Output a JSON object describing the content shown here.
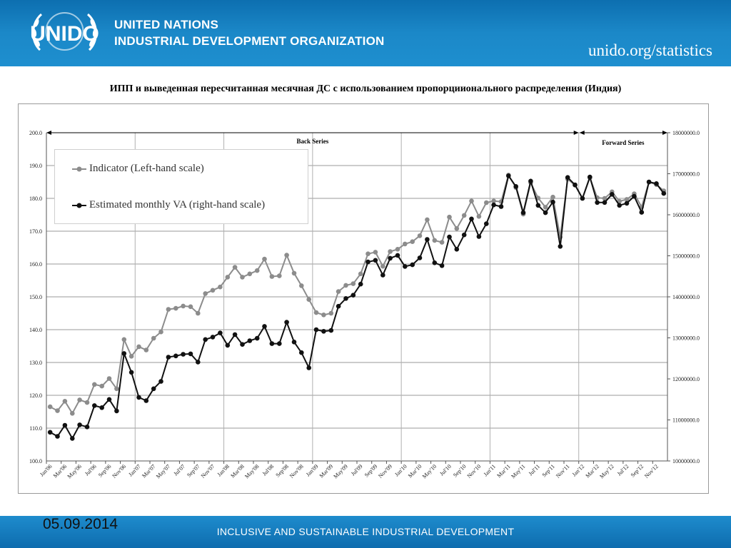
{
  "header": {
    "org_line1": "UNITED NATIONS",
    "org_line2": "INDUSTRIAL DEVELOPMENT ORGANIZATION",
    "logo_text": "UNIDO",
    "site": "unido.org/statistics"
  },
  "footer": {
    "date": "05.09.2014",
    "slogan": "INCLUSIVE AND SUSTAINABLE INDUSTRIAL DEVELOPMENT"
  },
  "colors": {
    "indicator": "#8c8c8c",
    "estimated": "#111111",
    "header": "#1b88c8"
  },
  "chart_data": {
    "type": "line",
    "title": "ИПП и выведенная пересчитанная месячная ДС с использованием пропорциионального распределения (Индия)",
    "annotations": {
      "back": "Back Series",
      "forward": "Forward Series",
      "split_at": "Jan'12"
    },
    "xticks": [
      "Jan'06",
      "Mar'06",
      "May'06",
      "Jul'06",
      "Sep'06",
      "Nov'06",
      "Jan'07",
      "Mar'07",
      "May'07",
      "Jul'07",
      "Sep'07",
      "Nov'07",
      "Jan'08",
      "Mar'08",
      "May'08",
      "Jul'08",
      "Sep'08",
      "Nov'08",
      "Jan'09",
      "Mar'09",
      "May'09",
      "Jul'09",
      "Sep'09",
      "Nov'09",
      "Jan'10",
      "Mar'10",
      "May'10",
      "Jul'10",
      "Sep'10",
      "Nov'10",
      "Jan'11",
      "Mar'11",
      "May'11",
      "Jul'11",
      "Sep'11",
      "Nov'11",
      "Jan'12",
      "Mar'12",
      "May'12",
      "Jul'12",
      "Sep'12",
      "Nov'12"
    ],
    "y_left": {
      "min": 100,
      "max": 200,
      "step": 10,
      "ticks": [
        "100.0",
        "110.0",
        "120.0",
        "130.0",
        "140.0",
        "150.0",
        "160.0",
        "170.0",
        "180.0",
        "190.0",
        "200.0"
      ]
    },
    "y_right": {
      "min": 10000000,
      "max": 18000000,
      "step": 1000000,
      "ticks": [
        "10000000.0",
        "11000000.0",
        "12000000.0",
        "13000000.0",
        "14000000.0",
        "15000000.0",
        "16000000.0",
        "17000000.0",
        "18000000.0"
      ]
    },
    "grid": "horizontal",
    "legend_position": "top-left",
    "series": [
      {
        "name": "Indicator (Left-hand scale)",
        "axis": "left",
        "values": [
          116.5,
          115.3,
          118.2,
          114.5,
          118.6,
          117.8,
          123.3,
          122.8,
          125.1,
          122.0,
          137.0,
          131.9,
          134.8,
          133.8,
          137.4,
          139.3,
          146.2,
          146.5,
          147.2,
          147.0,
          145.0,
          151.0,
          152.0,
          153.0,
          156.0,
          159.0,
          156.0,
          157.0,
          158.0,
          161.5,
          156.2,
          156.4,
          162.7,
          157.2,
          153.4,
          149.2,
          145.2,
          144.5,
          145.0,
          151.6,
          153.5,
          154.0,
          157.0,
          163.1,
          163.6,
          159.3,
          163.8,
          164.5,
          166.1,
          166.8,
          168.6,
          173.5,
          167.2,
          166.6,
          174.3,
          170.8,
          174.8,
          179.2,
          174.5,
          178.7,
          179.2,
          179.0,
          187.1,
          183.3,
          175.2,
          184.8,
          180.1,
          177.3,
          180.4,
          168.2,
          185.9,
          184.0,
          180.0,
          186.3,
          180.2,
          180.0,
          182.0,
          179.1,
          179.7,
          181.4,
          177.4,
          185.0,
          184.2,
          182.3
        ]
      },
      {
        "name": "Estimated monthly VA (right-hand scale)",
        "axis": "right",
        "values": [
          10700000,
          10600000,
          10870000,
          10550000,
          10880000,
          10830000,
          11350000,
          11300000,
          11500000,
          11220000,
          12620000,
          12160000,
          11550000,
          11470000,
          11760000,
          11940000,
          12530000,
          12560000,
          12600000,
          12610000,
          12410000,
          12960000,
          13020000,
          13120000,
          12820000,
          13080000,
          12840000,
          12930000,
          12990000,
          13280000,
          12860000,
          12860000,
          13380000,
          12900000,
          12640000,
          12270000,
          13200000,
          13160000,
          13180000,
          13770000,
          13960000,
          14040000,
          14310000,
          14850000,
          14890000,
          14530000,
          14940000,
          15010000,
          14740000,
          14780000,
          14950000,
          15400000,
          14830000,
          14760000,
          15460000,
          15160000,
          15510000,
          15900000,
          15470000,
          15780000,
          16240000,
          16200000,
          16950000,
          16690000,
          16050000,
          16820000,
          16230000,
          16050000,
          16310000,
          15230000,
          16910000,
          16730000,
          16400000,
          16920000,
          16300000,
          16300000,
          16500000,
          16230000,
          16280000,
          16450000,
          16060000,
          16800000,
          16760000,
          16520000
        ]
      }
    ]
  }
}
